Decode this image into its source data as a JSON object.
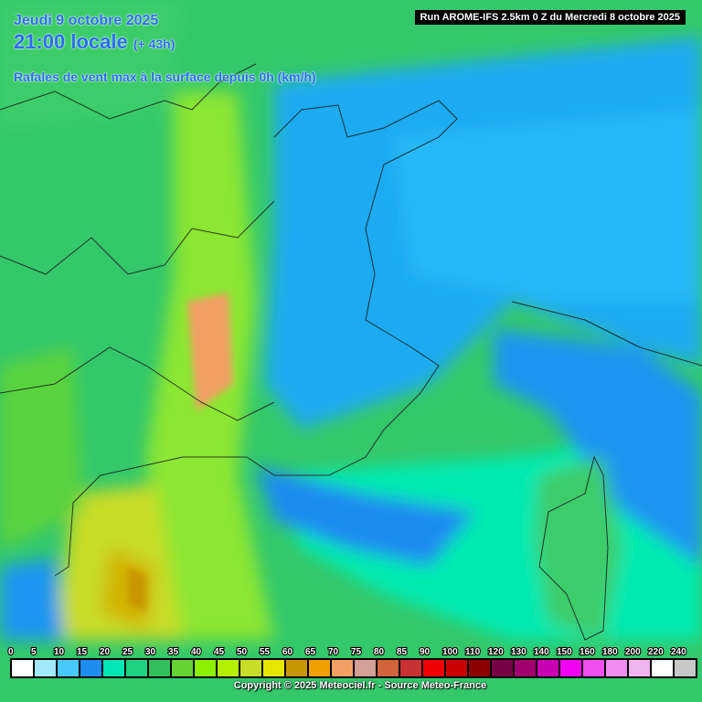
{
  "header": {
    "date": "Jeudi 9 octobre 2025",
    "time": "21:00 locale",
    "lead": "(+ 43h)",
    "parameter": "Rafales de vent max à la surface depuis 0h (km/h)",
    "run": "Run AROME-IFS 2.5km 0 Z du Mercredi 8 octobre 2025"
  },
  "legend": {
    "items": [
      {
        "value": 0,
        "color": "#ffffff"
      },
      {
        "value": 5,
        "color": "#a0e8fa"
      },
      {
        "value": 10,
        "color": "#46c8fa"
      },
      {
        "value": 15,
        "color": "#1e8cf0"
      },
      {
        "value": 20,
        "color": "#00e6b4"
      },
      {
        "value": 25,
        "color": "#1ed282"
      },
      {
        "value": 30,
        "color": "#32be5a"
      },
      {
        "value": 35,
        "color": "#64d232"
      },
      {
        "value": 40,
        "color": "#8cf000"
      },
      {
        "value": 45,
        "color": "#b4f000"
      },
      {
        "value": 50,
        "color": "#c8dc28"
      },
      {
        "value": 55,
        "color": "#e6e600"
      },
      {
        "value": 60,
        "color": "#c89600"
      },
      {
        "value": 65,
        "color": "#f0a000"
      },
      {
        "value": 70,
        "color": "#f0a064"
      },
      {
        "value": 75,
        "color": "#d2a096"
      },
      {
        "value": 80,
        "color": "#d2643c"
      },
      {
        "value": 85,
        "color": "#c83232"
      },
      {
        "value": 90,
        "color": "#f00000"
      },
      {
        "value": 100,
        "color": "#c80000"
      },
      {
        "value": 110,
        "color": "#8c0000"
      },
      {
        "value": 120,
        "color": "#780046"
      },
      {
        "value": 130,
        "color": "#a0006e"
      },
      {
        "value": 140,
        "color": "#c800b4"
      },
      {
        "value": 150,
        "color": "#f000f0"
      },
      {
        "value": 160,
        "color": "#f050f0"
      },
      {
        "value": 180,
        "color": "#f08cf0"
      },
      {
        "value": 200,
        "color": "#f0b4f0"
      },
      {
        "value": 220,
        "color": "#ffffff"
      },
      {
        "value": 240,
        "color": "#c8c8c8"
      }
    ]
  },
  "footer": {
    "copyright": "Copyright © 2025 Meteociel.fr - Source Meteo-France"
  }
}
